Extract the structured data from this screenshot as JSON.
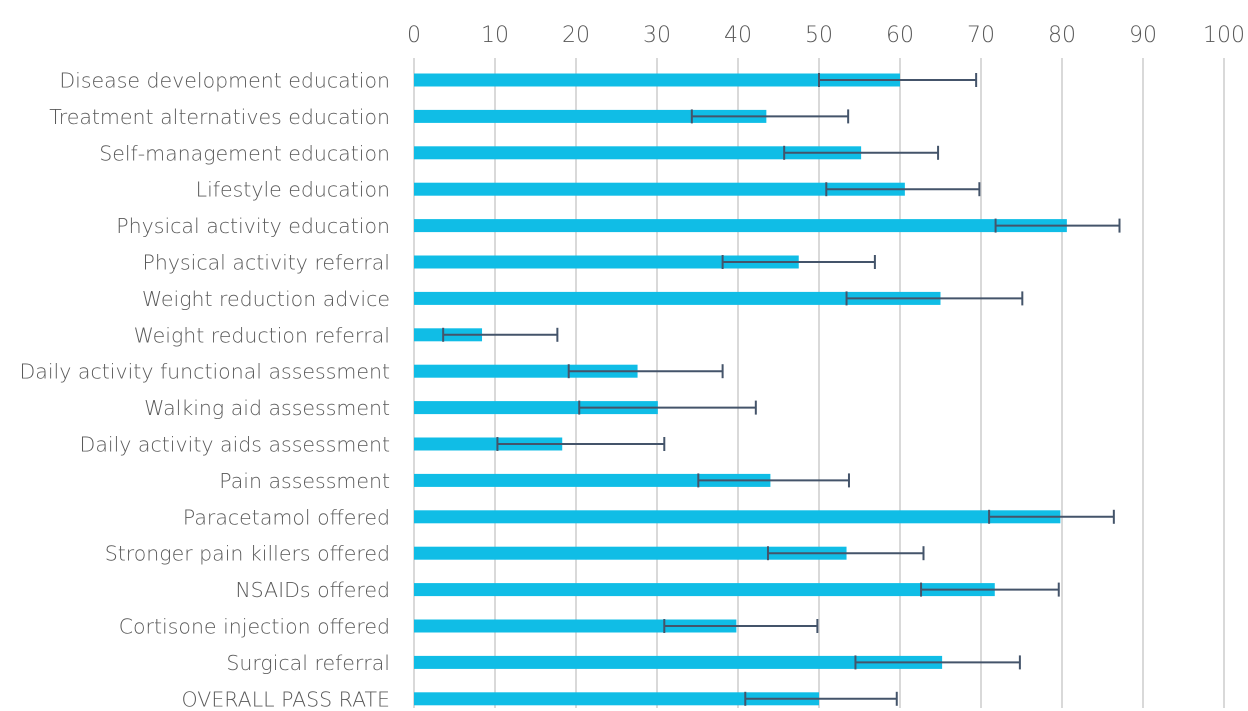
{
  "chart_data": {
    "type": "bar",
    "orientation": "horizontal",
    "title": "",
    "xlabel": "",
    "ylabel": "",
    "xlim": [
      0,
      100
    ],
    "x_ticks": [
      "0",
      "10",
      "20",
      "30",
      "40",
      "50",
      "60",
      "70",
      "80",
      "90",
      "100"
    ],
    "grid": true,
    "legend": "none",
    "bar_color": "#10bde6",
    "error_bar_color": "#44546a",
    "gridline_color": "#d9d9d9",
    "categories": [
      "Disease development education",
      "Treatment alternatives education",
      "Self-management education",
      "Lifestyle education",
      "Physical activity education",
      "Physical activity referral",
      "Weight reduction advice",
      "Weight reduction referral",
      "Daily activity functional assessment",
      "Walking aid assessment",
      "Daily activity aids assessment",
      "Pain assessment",
      "Paracetamol offered",
      "Stronger pain killers offered",
      "NSAIDs offered",
      "Cortisone injection offered",
      "Surgical referral",
      "OVERALL PASS RATE"
    ],
    "values": [
      60,
      43.5,
      55.2,
      60.6,
      80.6,
      47.5,
      65,
      8.4,
      27.6,
      30.1,
      18.3,
      44,
      79.8,
      53.4,
      71.7,
      39.8,
      65.2,
      50
    ],
    "error_low": [
      50,
      34.3,
      45.7,
      50.9,
      71.8,
      38.1,
      53.4,
      3.6,
      19.1,
      20.4,
      10.3,
      35.1,
      71,
      43.7,
      62.6,
      30.9,
      54.5,
      40.9
    ],
    "error_high": [
      69.4,
      53.6,
      64.7,
      69.8,
      87.1,
      56.9,
      75.1,
      17.7,
      38.1,
      42.2,
      30.9,
      53.7,
      86.4,
      62.9,
      79.6,
      49.8,
      74.8,
      59.6
    ]
  }
}
